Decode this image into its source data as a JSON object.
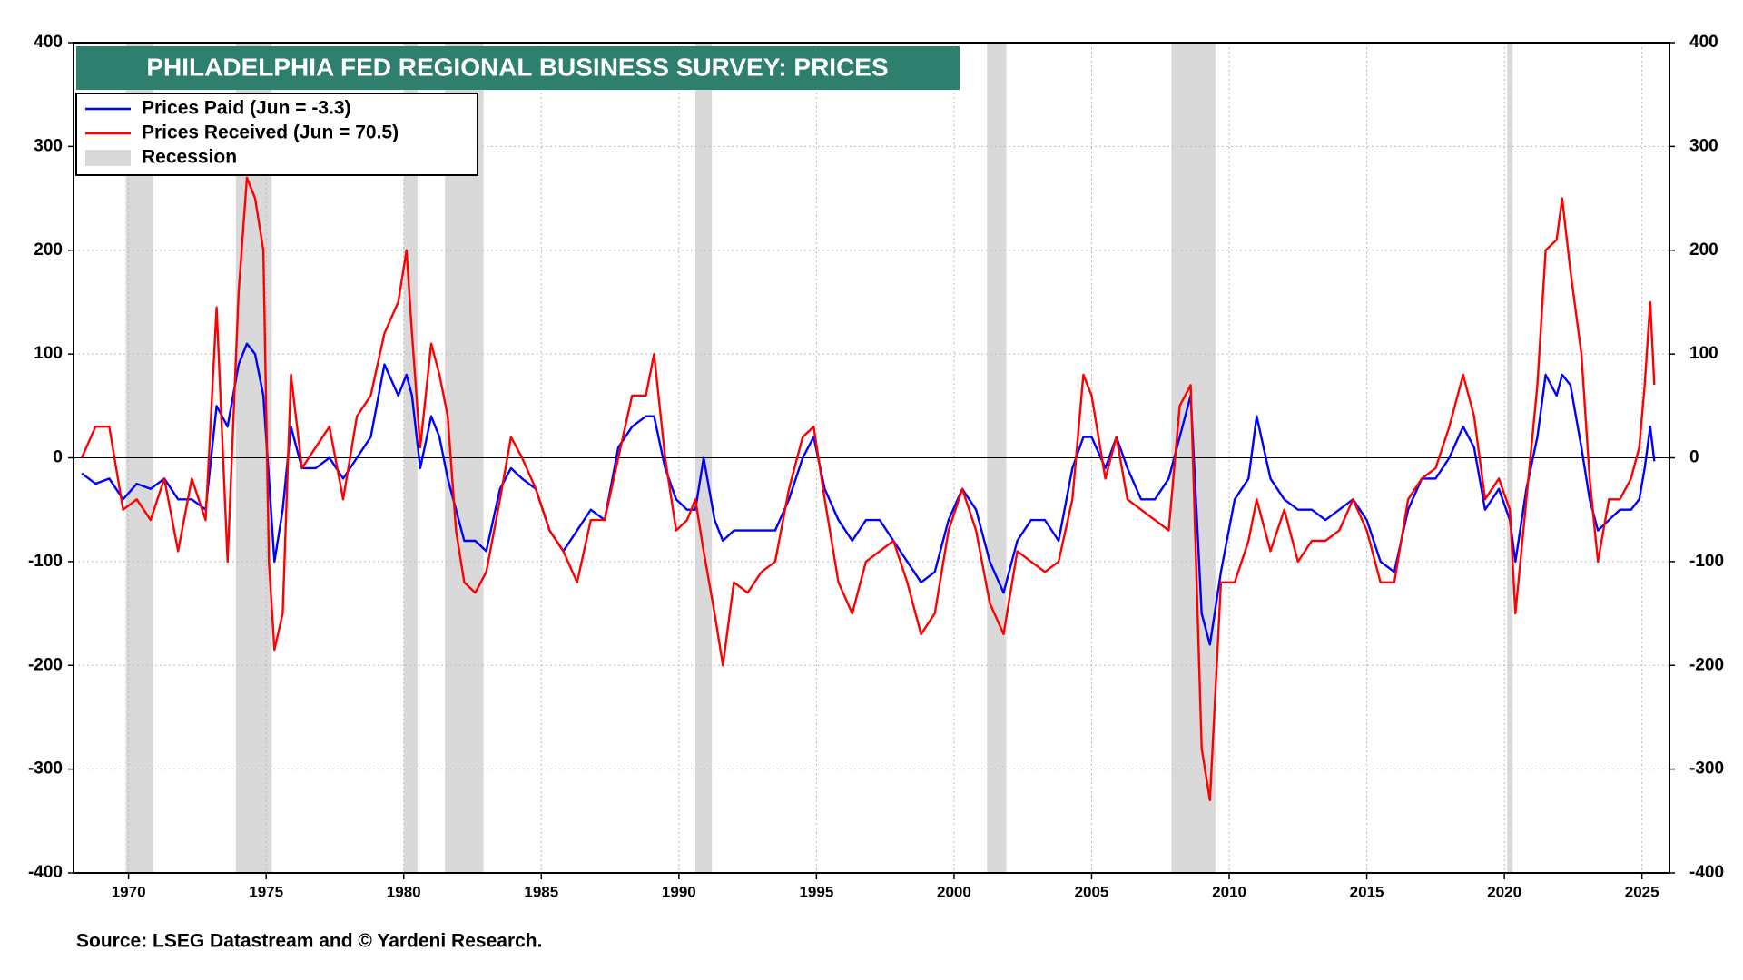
{
  "chart_data": {
    "type": "line",
    "title": "PHILADELPHIA FED REGIONAL BUSINESS SURVEY: PRICES",
    "source": "Source: LSEG Datastream and © Yardeni Research.",
    "legend": "upper left",
    "grid": true,
    "xlim": [
      1968,
      2026
    ],
    "xticks": [
      1970,
      1975,
      1980,
      1985,
      1990,
      1995,
      2000,
      2005,
      2010,
      2015,
      2020,
      2025
    ],
    "ylim": [
      -400,
      400
    ],
    "yticks": [
      -400,
      -300,
      -200,
      -100,
      0,
      100,
      200,
      300,
      400
    ],
    "y2lim": [
      -400,
      400
    ],
    "y2ticks": [
      -400,
      -300,
      -200,
      -100,
      0,
      100,
      200,
      300,
      400
    ],
    "recession": {
      "name": "Recession",
      "color": "#d9d9d9",
      "periods": [
        [
          1969.9,
          1970.9
        ],
        [
          1973.9,
          1975.2
        ],
        [
          1980.0,
          1980.5
        ],
        [
          1981.5,
          1982.9
        ],
        [
          1990.6,
          1991.2
        ],
        [
          2001.2,
          2001.9
        ],
        [
          2007.9,
          2009.5
        ],
        [
          2020.1,
          2020.3
        ]
      ]
    },
    "x": [
      1968.3,
      1968.8,
      1969.3,
      1969.8,
      1970.3,
      1970.8,
      1971.3,
      1971.8,
      1972.3,
      1972.8,
      1973.2,
      1973.6,
      1974.0,
      1974.3,
      1974.6,
      1974.9,
      1975.1,
      1975.3,
      1975.6,
      1975.9,
      1976.3,
      1976.8,
      1977.3,
      1977.8,
      1978.3,
      1978.8,
      1979.3,
      1979.8,
      1980.1,
      1980.3,
      1980.6,
      1981.0,
      1981.3,
      1981.6,
      1981.9,
      1982.2,
      1982.6,
      1983.0,
      1983.5,
      1983.9,
      1984.3,
      1984.8,
      1985.3,
      1985.8,
      1986.3,
      1986.8,
      1987.3,
      1987.8,
      1988.3,
      1988.8,
      1989.1,
      1989.5,
      1989.9,
      1990.3,
      1990.6,
      1990.9,
      1991.3,
      1991.6,
      1992.0,
      1992.5,
      1993.0,
      1993.5,
      1994.0,
      1994.5,
      1994.9,
      1995.3,
      1995.8,
      1996.3,
      1996.8,
      1997.3,
      1997.8,
      1998.3,
      1998.8,
      1999.3,
      1999.8,
      2000.3,
      2000.8,
      2001.3,
      2001.8,
      2002.3,
      2002.8,
      2003.3,
      2003.8,
      2004.3,
      2004.7,
      2005.0,
      2005.5,
      2005.9,
      2006.3,
      2006.8,
      2007.3,
      2007.8,
      2008.2,
      2008.6,
      2009.0,
      2009.3,
      2009.7,
      2010.2,
      2010.7,
      2011.0,
      2011.5,
      2012.0,
      2012.5,
      2013.0,
      2013.5,
      2014.0,
      2014.5,
      2015.0,
      2015.5,
      2016.0,
      2016.5,
      2017.0,
      2017.5,
      2018.0,
      2018.5,
      2018.9,
      2019.3,
      2019.8,
      2020.2,
      2020.4,
      2020.8,
      2021.2,
      2021.5,
      2021.9,
      2022.1,
      2022.4,
      2022.8,
      2023.1,
      2023.4,
      2023.8,
      2024.2,
      2024.6,
      2024.9,
      2025.1,
      2025.3,
      2025.45
    ],
    "series": [
      {
        "name": "Prices Paid (Jun = -3.3)",
        "color": "#0000ff",
        "values": [
          -15,
          -25,
          -20,
          -40,
          -25,
          -30,
          -20,
          -40,
          -40,
          -50,
          50,
          30,
          90,
          110,
          100,
          60,
          -20,
          -100,
          -50,
          30,
          -10,
          -10,
          0,
          -20,
          0,
          20,
          90,
          60,
          80,
          60,
          -10,
          40,
          20,
          -20,
          -50,
          -80,
          -80,
          -90,
          -30,
          -10,
          -20,
          -30,
          -70,
          -90,
          -70,
          -50,
          -60,
          10,
          30,
          40,
          40,
          -10,
          -40,
          -50,
          -50,
          0,
          -60,
          -80,
          -70,
          -70,
          -70,
          -70,
          -40,
          0,
          20,
          -30,
          -60,
          -80,
          -60,
          -60,
          -80,
          -100,
          -120,
          -110,
          -60,
          -30,
          -50,
          -100,
          -130,
          -80,
          -60,
          -60,
          -80,
          -10,
          20,
          20,
          -10,
          20,
          -10,
          -40,
          -40,
          -20,
          20,
          60,
          -150,
          -180,
          -110,
          -40,
          -20,
          40,
          -20,
          -40,
          -50,
          -50,
          -60,
          -50,
          -40,
          -60,
          -100,
          -110,
          -50,
          -20,
          -20,
          0,
          30,
          10,
          -50,
          -30,
          -60,
          -100,
          -30,
          20,
          80,
          60,
          80,
          70,
          10,
          -40,
          -70,
          -60,
          -50,
          -50,
          -40,
          -10,
          30,
          -3.3
        ]
      },
      {
        "name": "Prices Received (Jun = 70.5)",
        "color": "#ff0000",
        "values": [
          0,
          30,
          30,
          -50,
          -40,
          -60,
          -20,
          -90,
          -20,
          -60,
          145,
          -100,
          160,
          270,
          250,
          200,
          -100,
          -185,
          -150,
          80,
          -10,
          10,
          30,
          -40,
          40,
          60,
          120,
          150,
          200,
          120,
          10,
          110,
          80,
          40,
          -70,
          -120,
          -130,
          -110,
          -40,
          20,
          0,
          -30,
          -70,
          -90,
          -120,
          -60,
          -60,
          0,
          60,
          60,
          100,
          0,
          -70,
          -60,
          -40,
          -90,
          -150,
          -200,
          -120,
          -130,
          -110,
          -100,
          -30,
          20,
          30,
          -40,
          -120,
          -150,
          -100,
          -90,
          -80,
          -120,
          -170,
          -150,
          -70,
          -30,
          -70,
          -140,
          -170,
          -90,
          -100,
          -110,
          -100,
          -40,
          80,
          60,
          -20,
          20,
          -40,
          -50,
          -60,
          -70,
          50,
          70,
          -280,
          -330,
          -120,
          -120,
          -80,
          -40,
          -90,
          -50,
          -100,
          -80,
          -80,
          -70,
          -40,
          -70,
          -120,
          -120,
          -40,
          -20,
          -10,
          30,
          80,
          40,
          -40,
          -20,
          -50,
          -150,
          -40,
          70,
          200,
          210,
          250,
          180,
          100,
          -20,
          -100,
          -40,
          -40,
          -20,
          10,
          70,
          150,
          70.5
        ]
      }
    ]
  }
}
